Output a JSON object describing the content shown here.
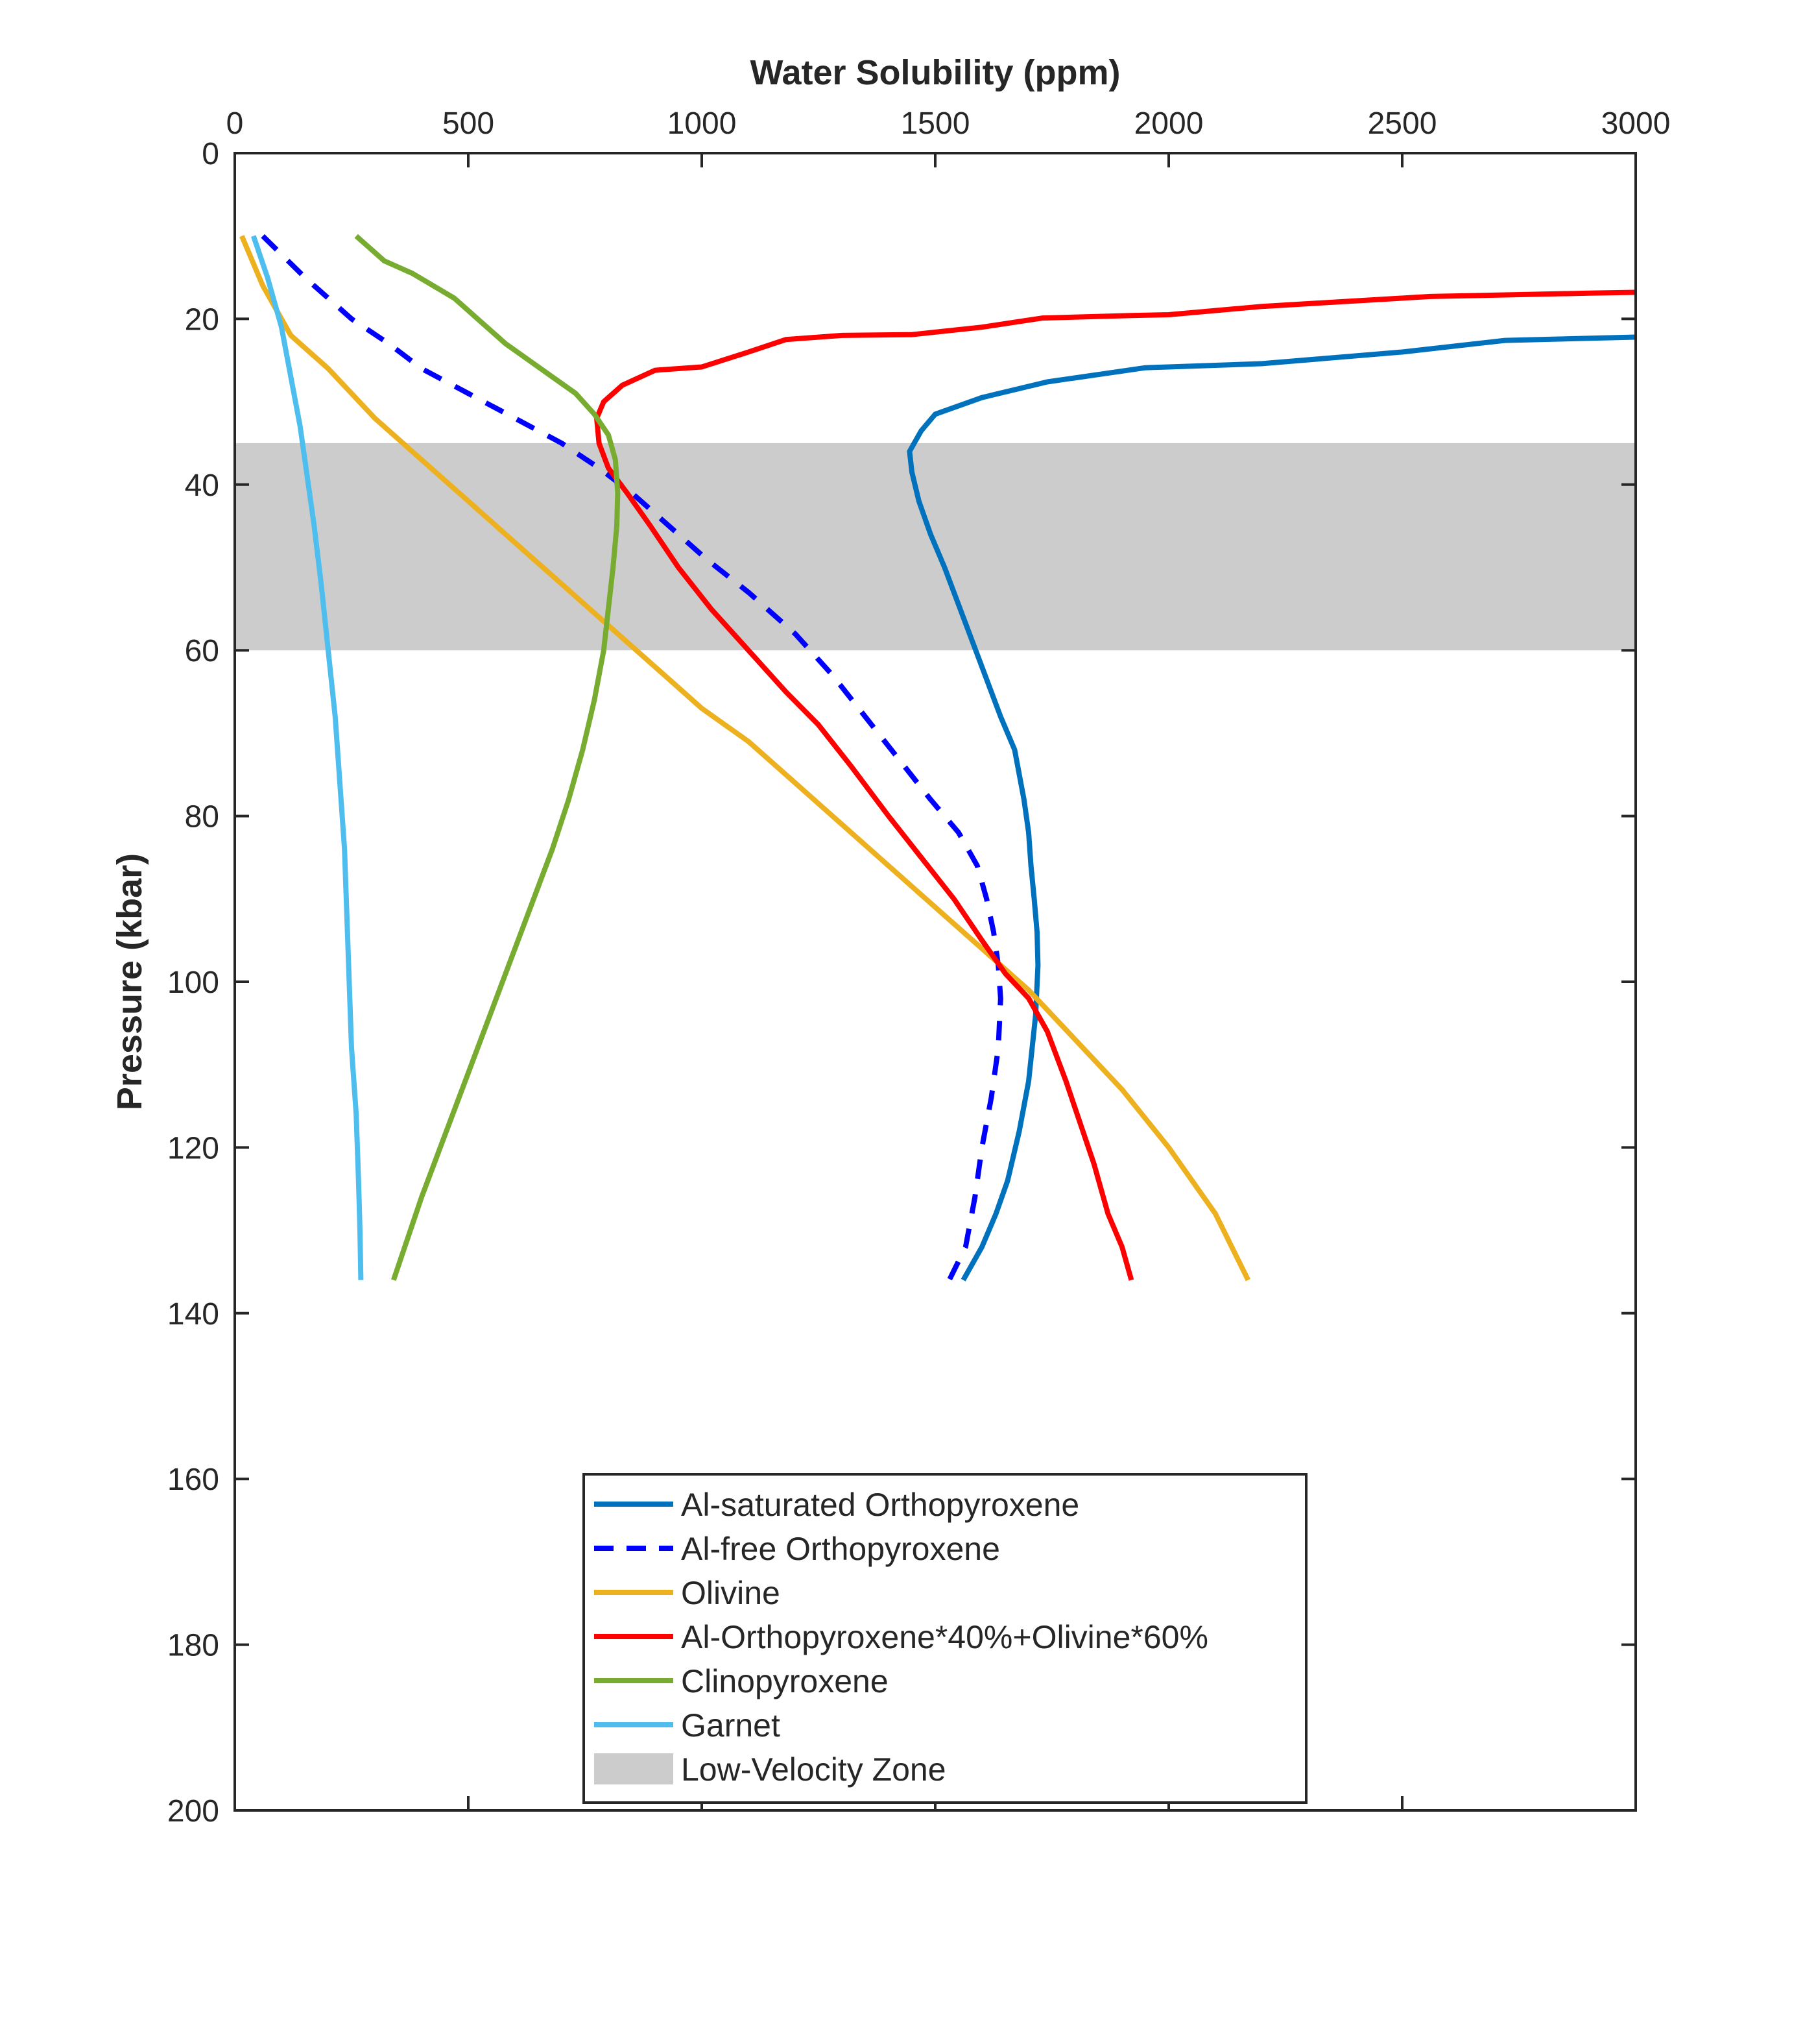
{
  "chart_data": {
    "type": "line",
    "xlabel": "Water Solubility (ppm)",
    "ylabel": "Pressure (kbar)",
    "xlim": [
      0,
      3000
    ],
    "ylim": [
      0,
      200
    ],
    "x_axis_position": "top",
    "y_axis_direction": "reversed",
    "x_ticks": [
      "0",
      "500",
      "1000",
      "1500",
      "2000",
      "2500",
      "3000"
    ],
    "y_ticks": [
      "0",
      "20",
      "40",
      "60",
      "80",
      "100",
      "120",
      "140",
      "160",
      "180",
      "200"
    ],
    "x_tick_values": [
      0,
      500,
      1000,
      1500,
      2000,
      2500,
      3000
    ],
    "y_tick_values": [
      0,
      20,
      40,
      60,
      80,
      100,
      120,
      140,
      160,
      180,
      200
    ],
    "grid": false,
    "legend_position": "bottom-center",
    "shaded_band": {
      "name": "Low-Velocity Zone",
      "pressure_range": [
        35,
        60
      ],
      "color": "#cccccc"
    },
    "series": [
      {
        "name": "Al-saturated Orthopyroxene",
        "color": "#0072bd",
        "style": "solid",
        "points": [
          [
            3000,
            22.2
          ],
          [
            2720,
            22.6
          ],
          [
            2500,
            24
          ],
          [
            2200,
            25.4
          ],
          [
            2000,
            25.8
          ],
          [
            1950,
            25.9
          ],
          [
            1740,
            27.6
          ],
          [
            1600,
            29.5
          ],
          [
            1500,
            31.5
          ],
          [
            1470,
            33.5
          ],
          [
            1445,
            36
          ],
          [
            1450,
            38.5
          ],
          [
            1465,
            42
          ],
          [
            1490,
            46
          ],
          [
            1520,
            50
          ],
          [
            1560,
            56
          ],
          [
            1600,
            62
          ],
          [
            1640,
            68
          ],
          [
            1670,
            72
          ],
          [
            1690,
            78
          ],
          [
            1700,
            82
          ],
          [
            1705,
            86
          ],
          [
            1712,
            90
          ],
          [
            1718,
            94
          ],
          [
            1720,
            98
          ],
          [
            1715,
            104
          ],
          [
            1700,
            112
          ],
          [
            1680,
            118
          ],
          [
            1655,
            124
          ],
          [
            1630,
            128
          ],
          [
            1600,
            132
          ],
          [
            1560,
            136
          ]
        ]
      },
      {
        "name": "Al-free Orthopyroxene",
        "color": "#0000ff",
        "style": "dashed",
        "points": [
          [
            60,
            10
          ],
          [
            150,
            15
          ],
          [
            250,
            20
          ],
          [
            330,
            23
          ],
          [
            400,
            26
          ],
          [
            500,
            29
          ],
          [
            600,
            32
          ],
          [
            700,
            35
          ],
          [
            780,
            38
          ],
          [
            850,
            41
          ],
          [
            930,
            45
          ],
          [
            1010,
            49
          ],
          [
            1100,
            53
          ],
          [
            1200,
            58
          ],
          [
            1280,
            63
          ],
          [
            1350,
            68
          ],
          [
            1420,
            73
          ],
          [
            1490,
            78
          ],
          [
            1550,
            82
          ],
          [
            1590,
            86
          ],
          [
            1610,
            90
          ],
          [
            1625,
            94
          ],
          [
            1635,
            98
          ],
          [
            1640,
            102
          ],
          [
            1635,
            108
          ],
          [
            1620,
            114
          ],
          [
            1600,
            120
          ],
          [
            1585,
            126
          ],
          [
            1565,
            132
          ],
          [
            1530,
            136
          ]
        ]
      },
      {
        "name": "Olivine",
        "color": "#edb120",
        "style": "solid",
        "points": [
          [
            15,
            10
          ],
          [
            60,
            16
          ],
          [
            120,
            22
          ],
          [
            200,
            26
          ],
          [
            300,
            32
          ],
          [
            400,
            37
          ],
          [
            500,
            42
          ],
          [
            600,
            47
          ],
          [
            700,
            52
          ],
          [
            800,
            57
          ],
          [
            900,
            62
          ],
          [
            1000,
            67
          ],
          [
            1100,
            71
          ],
          [
            1200,
            76
          ],
          [
            1300,
            81
          ],
          [
            1400,
            86
          ],
          [
            1500,
            91
          ],
          [
            1600,
            96
          ],
          [
            1700,
            101
          ],
          [
            1800,
            107
          ],
          [
            1900,
            113
          ],
          [
            2000,
            120
          ],
          [
            2100,
            128
          ],
          [
            2170,
            136
          ]
        ]
      },
      {
        "name": "Al-Orthopyroxene*40%+Olivine*60%",
        "color": "#ff0000",
        "style": "solid",
        "points": [
          [
            3000,
            16.8
          ],
          [
            2900,
            16.9
          ],
          [
            2560,
            17.3
          ],
          [
            2200,
            18.5
          ],
          [
            2000,
            19.5
          ],
          [
            1920,
            19.6
          ],
          [
            1730,
            19.9
          ],
          [
            1600,
            21
          ],
          [
            1450,
            21.9
          ],
          [
            1300,
            22
          ],
          [
            1180,
            22.5
          ],
          [
            1100,
            24
          ],
          [
            1000,
            25.8
          ],
          [
            900,
            26.2
          ],
          [
            830,
            28
          ],
          [
            790,
            30
          ],
          [
            775,
            32
          ],
          [
            780,
            35
          ],
          [
            800,
            38
          ],
          [
            840,
            41
          ],
          [
            890,
            45
          ],
          [
            950,
            50
          ],
          [
            1020,
            55
          ],
          [
            1100,
            60
          ],
          [
            1180,
            65
          ],
          [
            1250,
            69
          ],
          [
            1320,
            74
          ],
          [
            1400,
            80
          ],
          [
            1470,
            85
          ],
          [
            1540,
            90
          ],
          [
            1600,
            95
          ],
          [
            1650,
            99
          ],
          [
            1700,
            102
          ],
          [
            1740,
            106
          ],
          [
            1780,
            112
          ],
          [
            1810,
            117
          ],
          [
            1840,
            122
          ],
          [
            1870,
            128
          ],
          [
            1900,
            132
          ],
          [
            1920,
            136
          ]
        ]
      },
      {
        "name": "Clinopyroxene",
        "color": "#77ac30",
        "style": "solid",
        "points": [
          [
            260,
            10
          ],
          [
            320,
            13
          ],
          [
            380,
            14.5
          ],
          [
            440,
            16.5
          ],
          [
            470,
            17.5
          ],
          [
            500,
            19
          ],
          [
            540,
            21
          ],
          [
            580,
            23
          ],
          [
            630,
            25
          ],
          [
            680,
            27
          ],
          [
            730,
            29
          ],
          [
            770,
            31.5
          ],
          [
            800,
            34
          ],
          [
            815,
            37
          ],
          [
            820,
            41
          ],
          [
            818,
            45
          ],
          [
            810,
            50
          ],
          [
            800,
            55
          ],
          [
            790,
            60
          ],
          [
            770,
            66
          ],
          [
            745,
            72
          ],
          [
            715,
            78
          ],
          [
            680,
            84
          ],
          [
            640,
            90
          ],
          [
            600,
            96
          ],
          [
            560,
            102
          ],
          [
            520,
            108
          ],
          [
            480,
            114
          ],
          [
            440,
            120
          ],
          [
            400,
            126
          ],
          [
            370,
            131
          ],
          [
            340,
            136
          ]
        ]
      },
      {
        "name": "Garnet",
        "color": "#4dbeee",
        "style": "solid",
        "points": [
          [
            40,
            10
          ],
          [
            70,
            15
          ],
          [
            100,
            21
          ],
          [
            120,
            27
          ],
          [
            140,
            33
          ],
          [
            155,
            39
          ],
          [
            170,
            45
          ],
          [
            185,
            52
          ],
          [
            200,
            60
          ],
          [
            215,
            68
          ],
          [
            225,
            76
          ],
          [
            235,
            84
          ],
          [
            240,
            92
          ],
          [
            245,
            100
          ],
          [
            250,
            108
          ],
          [
            260,
            116
          ],
          [
            265,
            124
          ],
          [
            268,
            130
          ],
          [
            270,
            136
          ]
        ]
      }
    ],
    "legend": [
      {
        "label": "Al-saturated Orthopyroxene",
        "color": "#0072bd",
        "style": "solid"
      },
      {
        "label": "Al-free Orthopyroxene",
        "color": "#0000ff",
        "style": "dashed"
      },
      {
        "label": "Olivine",
        "color": "#edb120",
        "style": "solid"
      },
      {
        "label": "Al-Orthopyroxene*40%+Olivine*60%",
        "color": "#ff0000",
        "style": "solid"
      },
      {
        "label": "Clinopyroxene",
        "color": "#77ac30",
        "style": "solid"
      },
      {
        "label": "Garnet",
        "color": "#4dbeee",
        "style": "solid"
      },
      {
        "label": "Low-Velocity Zone",
        "color": "#cccccc",
        "style": "patch"
      }
    ]
  }
}
